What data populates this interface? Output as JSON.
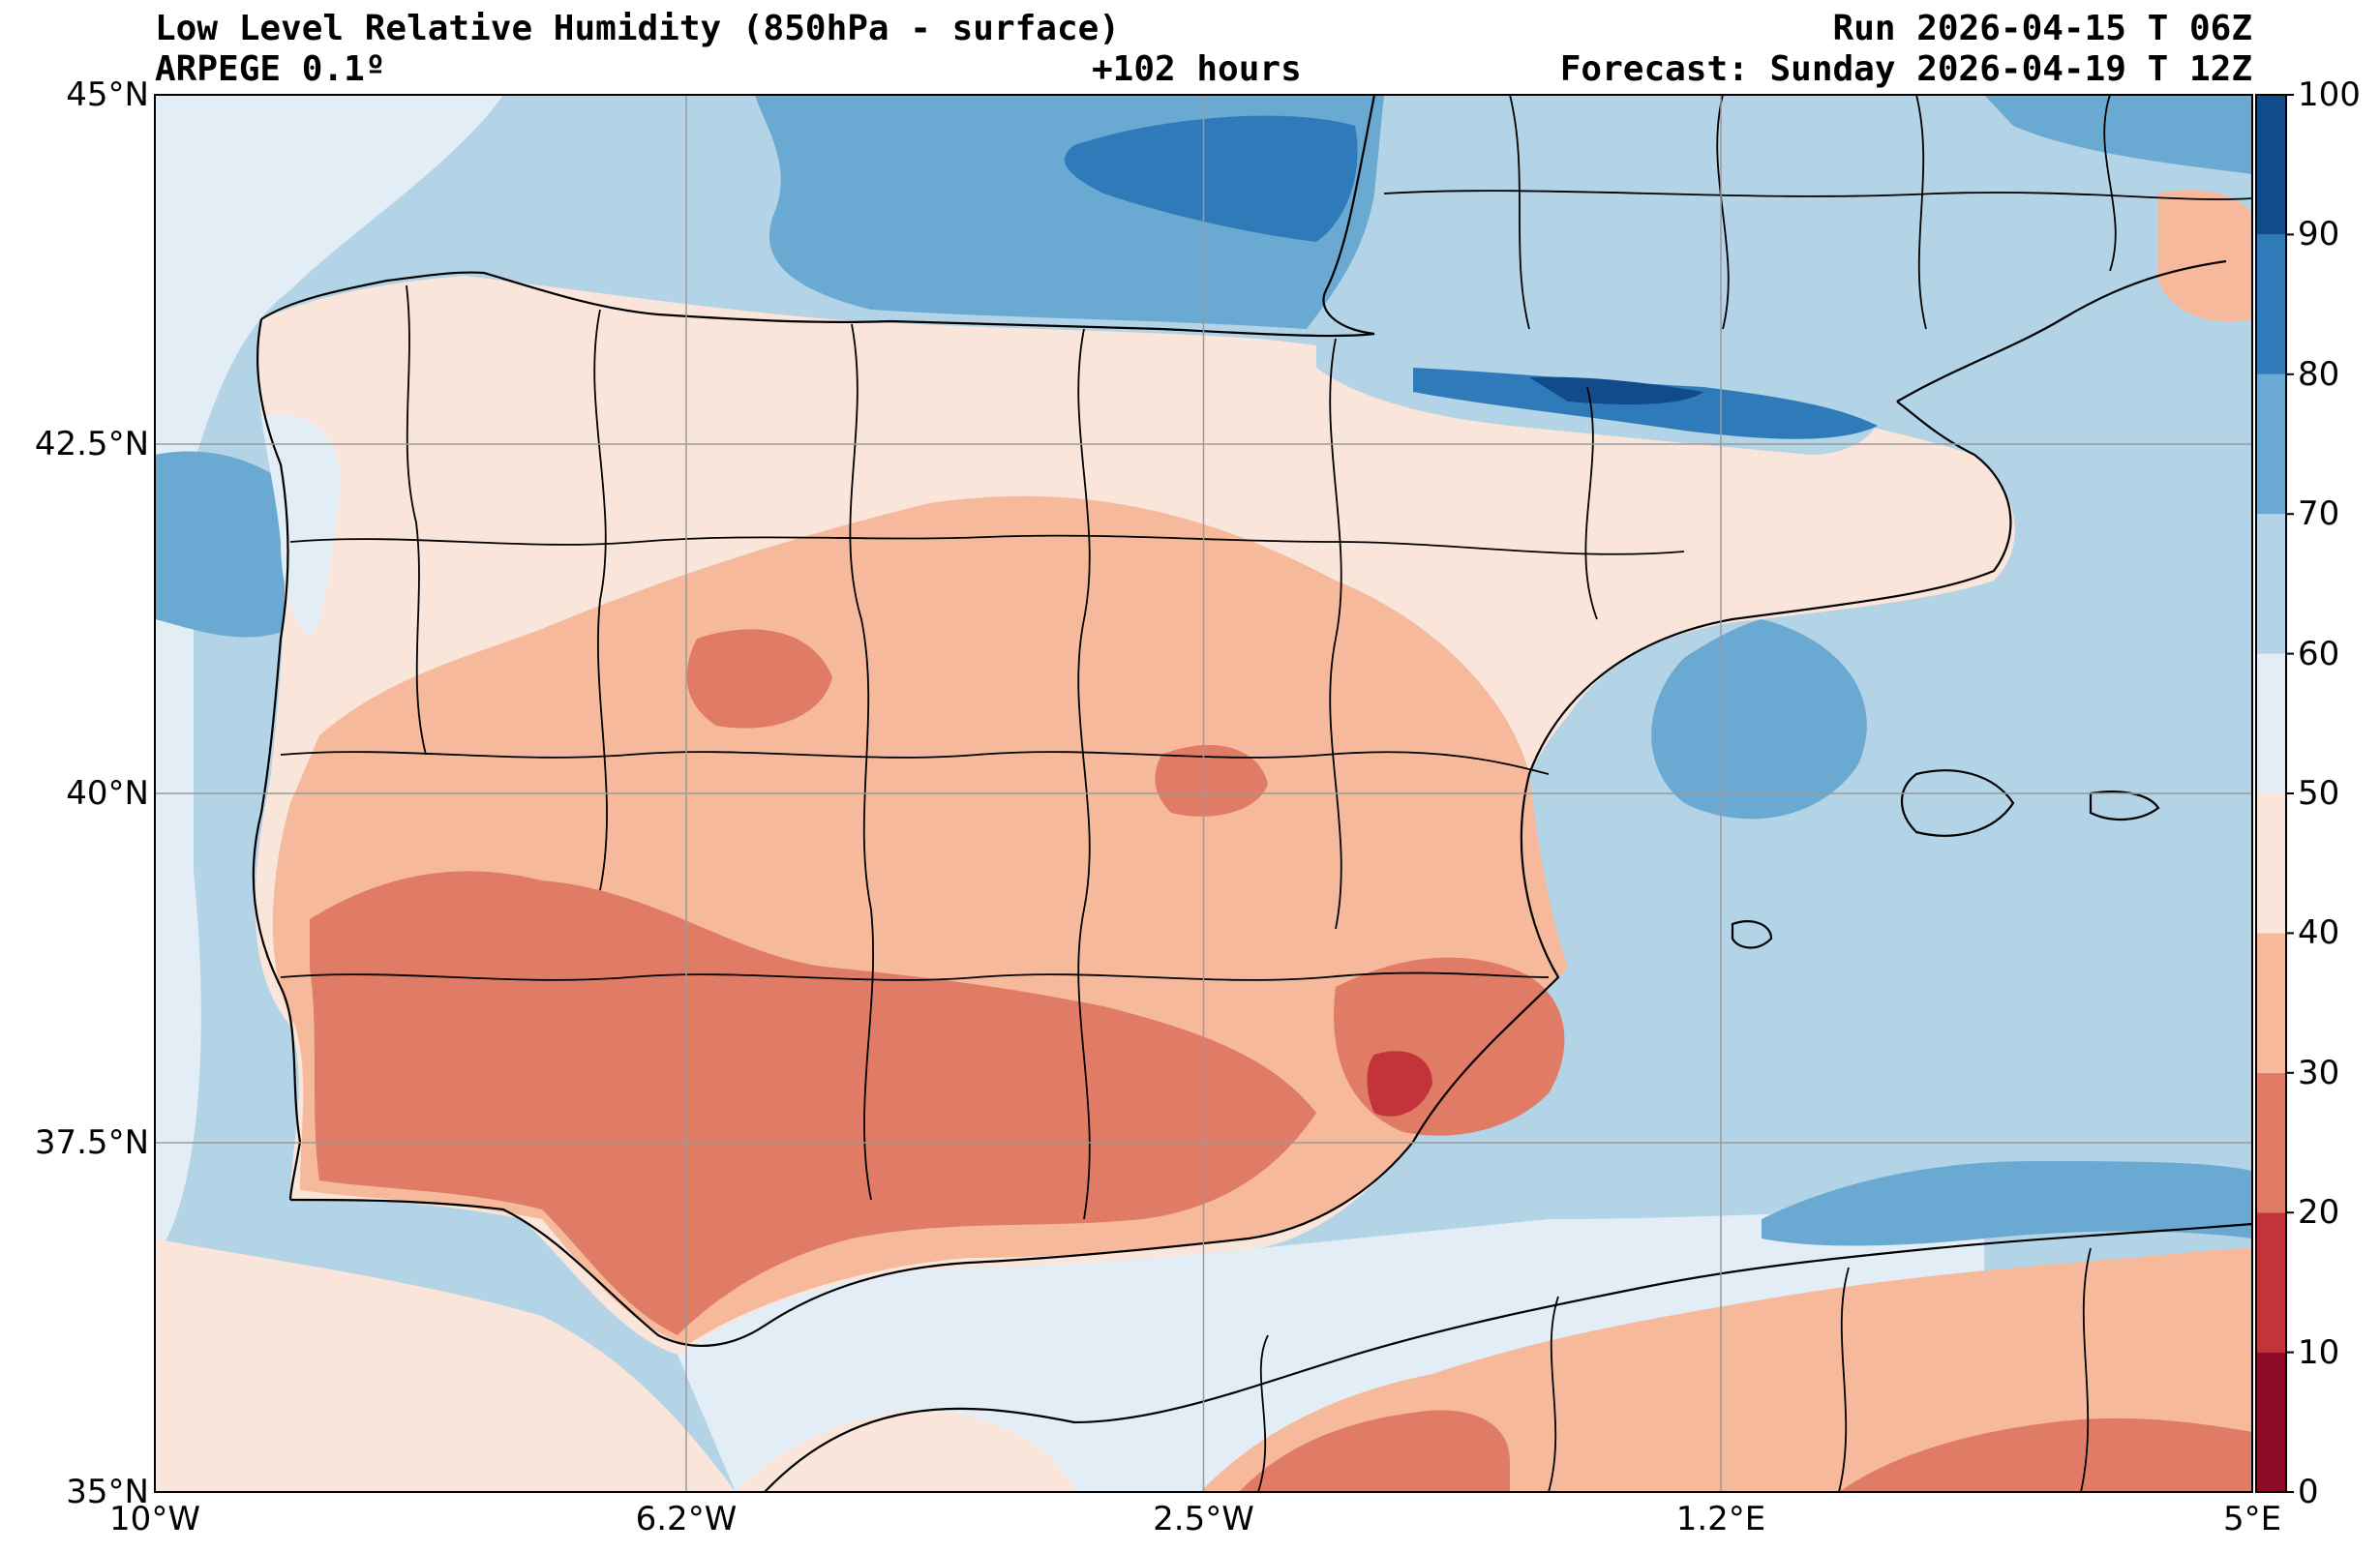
{
  "titles": {
    "title_left": "Low Level Relative Humidity (850hPa - surface)",
    "model": "ARPEGE 0.1º",
    "lead": "+102 hours",
    "run": "Run 2026-04-15 T 06Z",
    "forecast": "Forecast: Sunday 2026-04-19 T 12Z"
  },
  "chart_data": {
    "type": "heatmap",
    "variable": "Relative humidity (%)",
    "x_axis": {
      "range": [
        -10,
        5
      ],
      "ticks": [
        -10,
        -6.2,
        -2.5,
        1.2,
        5
      ],
      "tick_labels": [
        "10°W",
        "6.2°W",
        "2.5°W",
        "1.2°E",
        "5°E"
      ]
    },
    "y_axis": {
      "range": [
        35,
        45
      ],
      "ticks": [
        35,
        37.5,
        40,
        42.5,
        45
      ],
      "tick_labels": [
        "35°N",
        "37.5°N",
        "40°N",
        "42.5°N",
        "45°N"
      ]
    },
    "colorbar": {
      "levels": [
        0,
        10,
        20,
        30,
        40,
        50,
        60,
        70,
        80,
        90,
        100
      ],
      "labels": [
        "0",
        "10",
        "20",
        "30",
        "40",
        "50",
        "60",
        "70",
        "80",
        "90",
        "100"
      ],
      "colors": [
        "#8b0a26",
        "#c3333a",
        "#e07b65",
        "#f6b99c",
        "#fae5da",
        "#e3edf5",
        "#b3d3e7",
        "#6aaad2",
        "#2f7bba",
        "#124b8a"
      ]
    },
    "regions": [
      {
        "name": "biscay-sea",
        "class": 60
      },
      {
        "name": "biscay-low-core",
        "class": 80
      },
      {
        "name": "atlantic-west",
        "class": 50
      },
      {
        "name": "galicia-coast-moist",
        "class": 70
      },
      {
        "name": "iberia-land",
        "class": 40
      },
      {
        "name": "interior-dry",
        "class": 30
      },
      {
        "name": "south-dry",
        "class": 20
      },
      {
        "name": "murcia-very-dry",
        "class": 10
      },
      {
        "name": "pyrenees-moist",
        "class": 80
      },
      {
        "name": "mediterranean-sea",
        "class": 60
      },
      {
        "name": "alboran-sea",
        "class": 50
      },
      {
        "name": "north-africa-land",
        "class": 30
      }
    ]
  }
}
